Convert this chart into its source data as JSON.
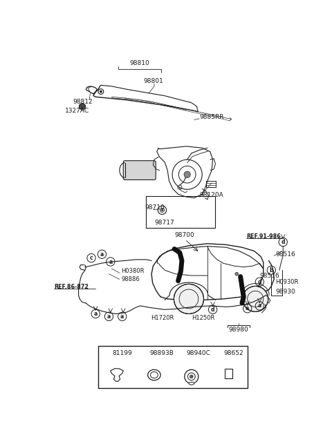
{
  "bg_color": "#ffffff",
  "line_color": "#1a1a1a",
  "text_color": "#1a1a1a",
  "legend_items": [
    {
      "letter": "a",
      "code": "81199"
    },
    {
      "letter": "b",
      "code": "98893B"
    },
    {
      "letter": "c",
      "code": "98940C"
    },
    {
      "letter": "d",
      "code": "98652"
    }
  ]
}
